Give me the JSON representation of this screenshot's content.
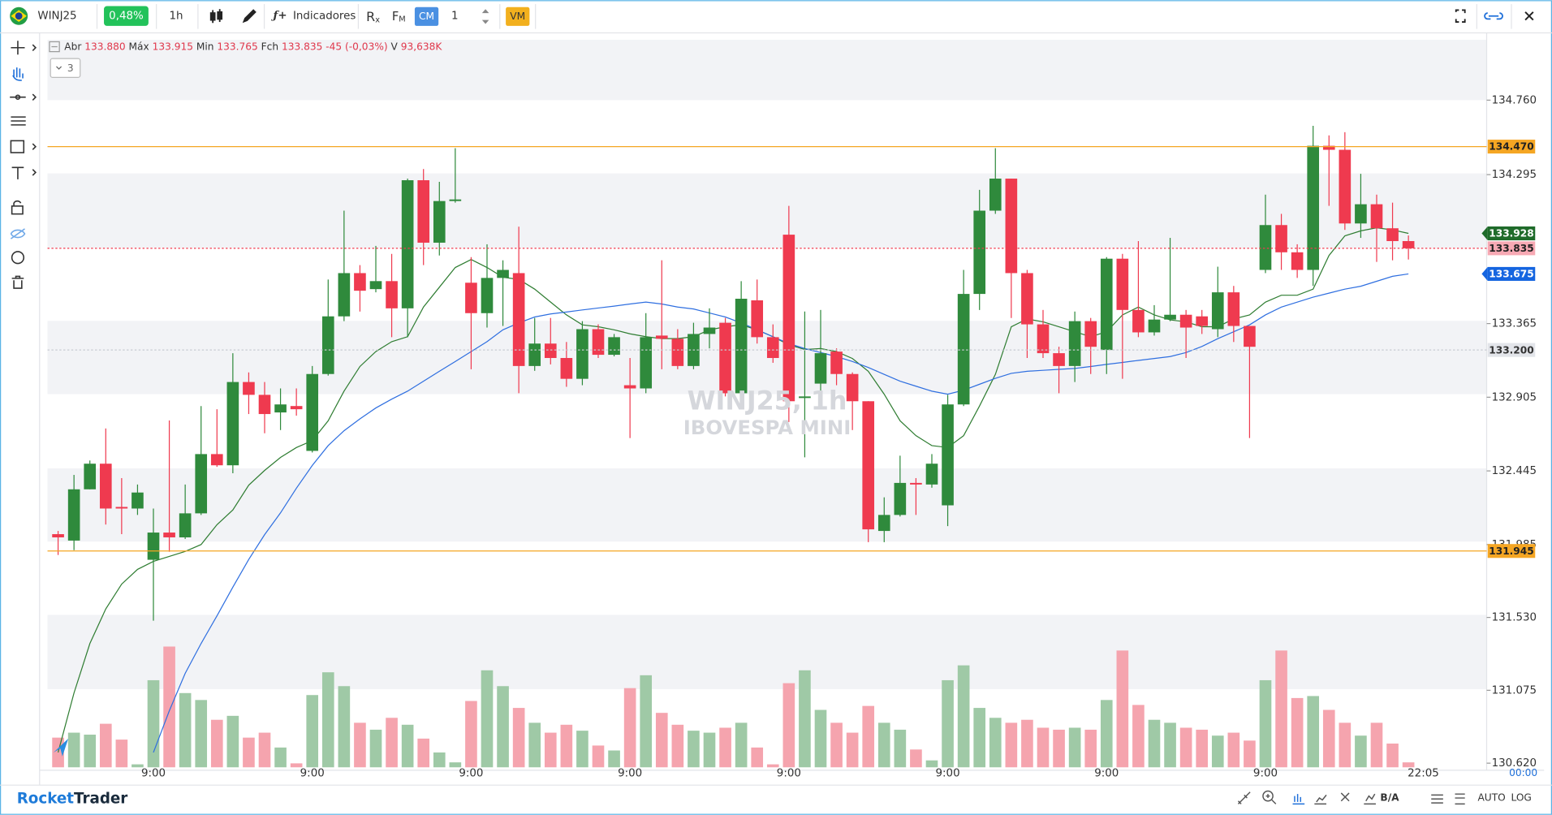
{
  "header": {
    "symbol": "WINJ25",
    "change": "0,48%",
    "interval": "1h",
    "indicators": "Indicadores",
    "r": "R",
    "r_sub": "x",
    "f": "F",
    "f_sub": "M",
    "cm": "CM",
    "qty": "1",
    "vm": "VM"
  },
  "info": {
    "items": [
      [
        "Abr",
        "133.880"
      ],
      [
        "Máx",
        "133.915"
      ],
      [
        "Min",
        "133.765"
      ],
      [
        "Fch",
        "133.835"
      ]
    ],
    "change": "-45 (-0,03%)",
    "vol_label": "V",
    "vol": "93,638K",
    "collapsed": "3"
  },
  "watermark": [
    "WINJ25, 1h",
    "IBOVESPA MINI"
  ],
  "footer": {
    "brand_a": "Rocket",
    "brand_b": "Trader",
    "ba": "B/A",
    "auto": "AUTO",
    "log": "LOG"
  },
  "chart_data": {
    "type": "candlestick",
    "categories": [
      null,
      null,
      null,
      null,
      null,
      null,
      "9:00",
      null,
      null,
      null,
      null,
      null,
      null,
      null,
      null,
      null,
      "9:00",
      null,
      null,
      null,
      null,
      null,
      null,
      null,
      null,
      null,
      "9:00",
      null,
      null,
      null,
      null,
      null,
      null,
      null,
      null,
      null,
      "9:00",
      null,
      null,
      null,
      null,
      null,
      null,
      null,
      null,
      null,
      "9:00",
      null,
      null,
      null,
      null,
      null,
      null,
      null,
      null,
      null,
      "9:00",
      null,
      null,
      null,
      null,
      null,
      null,
      null,
      null,
      null,
      "9:00",
      null,
      null,
      null,
      null,
      null,
      null,
      null,
      null,
      null,
      "9:00",
      null,
      null,
      null,
      null,
      null,
      null,
      null,
      null,
      null
    ],
    "open": [
      132.05,
      132.01,
      132.33,
      132.49,
      132.22,
      132.21,
      131.89,
      132.06,
      132.03,
      132.18,
      132.55,
      132.48,
      133.0,
      132.92,
      132.81,
      132.85,
      132.57,
      133.05,
      133.41,
      133.68,
      133.58,
      133.63,
      133.46,
      134.26,
      133.87,
      134.13,
      133.62,
      133.43,
      133.65,
      133.68,
      133.1,
      133.24,
      133.15,
      133.02,
      133.33,
      133.17,
      132.98,
      132.96,
      133.29,
      133.27,
      133.1,
      133.3,
      133.37,
      132.93,
      133.51,
      133.28,
      133.92,
      132.9,
      132.99,
      133.19,
      133.05,
      132.88,
      132.07,
      132.17,
      132.37,
      132.36,
      132.23,
      132.86,
      133.55,
      134.07,
      134.27,
      133.68,
      133.36,
      133.18,
      133.1,
      133.38,
      133.2,
      133.77,
      133.45,
      133.31,
      133.39,
      133.42,
      133.41,
      133.33,
      133.56,
      133.35,
      133.7,
      133.98,
      133.81,
      133.7,
      134.475,
      134.45,
      133.99,
      134.11,
      133.96,
      133.88
    ],
    "high": [
      132.07,
      132.42,
      132.51,
      132.71,
      132.4,
      132.36,
      132.21,
      132.76,
      132.36,
      132.85,
      132.83,
      133.18,
      133.06,
      133.0,
      132.96,
      132.96,
      133.1,
      133.64,
      134.07,
      133.73,
      133.85,
      133.8,
      134.27,
      134.33,
      134.25,
      134.46,
      133.78,
      133.86,
      133.76,
      133.97,
      133.4,
      133.4,
      133.25,
      133.38,
      133.36,
      133.3,
      133.15,
      133.43,
      133.76,
      133.33,
      133.37,
      133.46,
      133.4,
      133.63,
      133.64,
      133.36,
      134.1,
      133.44,
      133.45,
      133.21,
      133.06,
      132.88,
      132.28,
      132.54,
      132.4,
      132.55,
      132.92,
      133.7,
      134.2,
      134.46,
      134.27,
      133.7,
      133.45,
      133.22,
      133.44,
      133.4,
      133.78,
      133.8,
      133.88,
      133.48,
      133.9,
      133.45,
      133.45,
      133.72,
      133.6,
      133.35,
      134.17,
      134.05,
      133.86,
      134.6,
      134.54,
      134.56,
      134.3,
      134.17,
      134.12,
      133.915
    ],
    "low": [
      131.92,
      131.95,
      132.33,
      132.11,
      132.05,
      132.17,
      131.51,
      131.94,
      132.02,
      132.17,
      132.47,
      132.43,
      132.8,
      132.68,
      132.7,
      132.79,
      132.56,
      133.04,
      133.38,
      133.44,
      133.56,
      133.28,
      133.28,
      133.73,
      133.79,
      134.12,
      133.08,
      133.34,
      133.35,
      132.93,
      133.07,
      133.11,
      132.97,
      132.98,
      133.15,
      133.16,
      132.65,
      132.93,
      133.08,
      133.08,
      133.08,
      133.21,
      132.91,
      132.9,
      133.24,
      133.12,
      132.75,
      132.53,
      132.92,
      132.98,
      132.7,
      132.0,
      132.0,
      132.16,
      132.17,
      132.34,
      132.1,
      132.85,
      133.45,
      134.05,
      133.4,
      133.15,
      133.15,
      132.93,
      133.0,
      133.05,
      133.05,
      133.02,
      133.28,
      133.29,
      133.38,
      133.15,
      133.3,
      133.28,
      133.25,
      132.65,
      133.68,
      133.7,
      133.65,
      133.6,
      134.1,
      133.95,
      133.9,
      133.75,
      133.76,
      133.765
    ],
    "close": [
      132.03,
      132.33,
      132.49,
      132.21,
      132.21,
      132.31,
      132.06,
      132.03,
      132.18,
      132.55,
      132.48,
      133.0,
      132.92,
      132.8,
      132.86,
      132.83,
      133.05,
      133.41,
      133.68,
      133.57,
      133.63,
      133.46,
      134.26,
      133.87,
      134.13,
      134.14,
      133.43,
      133.65,
      133.7,
      133.1,
      133.24,
      133.15,
      133.02,
      133.33,
      133.17,
      133.28,
      132.96,
      133.28,
      133.27,
      133.1,
      133.3,
      133.34,
      132.93,
      133.52,
      133.28,
      133.15,
      132.88,
      132.91,
      133.18,
      133.05,
      132.88,
      132.08,
      132.17,
      132.37,
      132.36,
      132.49,
      132.86,
      133.55,
      134.07,
      134.27,
      133.68,
      133.36,
      133.18,
      133.1,
      133.38,
      133.22,
      133.77,
      133.45,
      133.31,
      133.39,
      133.42,
      133.34,
      133.35,
      133.56,
      133.35,
      133.22,
      133.98,
      133.81,
      133.7,
      134.475,
      134.45,
      133.99,
      134.11,
      133.96,
      133.88,
      133.835
    ],
    "volume": [
      30,
      35,
      33,
      44,
      28,
      3,
      88,
      122,
      75,
      68,
      48,
      52,
      30,
      35,
      20,
      4,
      73,
      96,
      82,
      45,
      38,
      50,
      43,
      29,
      15,
      5,
      67,
      98,
      82,
      60,
      45,
      35,
      43,
      37,
      22,
      17,
      80,
      93,
      55,
      43,
      37,
      35,
      40,
      45,
      20,
      3,
      85,
      98,
      58,
      45,
      35,
      62,
      45,
      38,
      18,
      7,
      88,
      103,
      60,
      50,
      45,
      48,
      40,
      38,
      40,
      38,
      68,
      118,
      63,
      48,
      45,
      40,
      38,
      32,
      35,
      27,
      88,
      118,
      70,
      72,
      58,
      45,
      32,
      45,
      24,
      5
    ],
    "up_color": "#2f8a3c",
    "down_color": "#ef3a4f",
    "volume_up_color": "#9fc9a6",
    "volume_down_color": "#f5a4ae",
    "ma_lines": [
      {
        "color": "#2f7d32",
        "values": [
          130.687,
          131.058,
          131.367,
          131.583,
          131.738,
          131.83,
          131.88,
          131.911,
          131.942,
          131.985,
          132.109,
          132.201,
          132.356,
          132.448,
          132.529,
          132.591,
          132.634,
          132.758,
          132.943,
          133.097,
          133.19,
          133.252,
          133.283,
          133.468,
          133.592,
          133.715,
          133.765,
          133.715,
          133.654,
          133.641,
          133.58,
          133.499,
          133.419,
          133.357,
          133.345,
          133.326,
          133.301,
          133.283,
          133.271,
          133.271,
          133.283,
          133.326,
          133.345,
          133.357,
          133.326,
          133.283,
          133.233,
          133.203,
          133.209,
          133.19,
          133.147,
          133.067,
          132.924,
          132.758,
          132.665,
          132.603,
          132.591,
          132.665,
          132.85,
          133.048,
          133.345,
          133.394,
          133.376,
          133.345,
          133.314,
          133.283,
          133.314,
          133.419,
          133.468,
          133.419,
          133.388,
          133.376,
          133.345,
          133.345,
          133.394,
          133.419,
          133.499,
          133.542,
          133.542,
          133.58,
          133.79,
          133.913,
          133.944,
          133.963,
          133.95,
          133.928
        ]
      },
      {
        "color": "#2f6fe0",
        "values": [
          null,
          null,
          null,
          null,
          null,
          null,
          130.687,
          130.947,
          131.181,
          131.367,
          131.54,
          131.719,
          131.892,
          132.047,
          132.183,
          132.337,
          132.479,
          132.603,
          132.696,
          132.77,
          132.838,
          132.893,
          132.943,
          133.005,
          133.067,
          133.128,
          133.19,
          133.252,
          133.326,
          133.369,
          133.406,
          133.425,
          133.437,
          133.45,
          133.462,
          133.474,
          133.487,
          133.499,
          133.487,
          133.468,
          133.456,
          133.431,
          133.406,
          133.369,
          133.326,
          133.283,
          133.24,
          133.209,
          133.184,
          133.159,
          133.128,
          133.091,
          133.048,
          133.005,
          132.974,
          132.943,
          132.924,
          132.949,
          132.986,
          133.023,
          133.054,
          133.067,
          133.073,
          133.079,
          133.085,
          133.097,
          133.11,
          133.122,
          133.135,
          133.147,
          133.159,
          133.184,
          133.222,
          133.271,
          133.314,
          133.357,
          133.419,
          133.468,
          133.499,
          133.53,
          133.555,
          133.58,
          133.598,
          133.629,
          133.66,
          133.675
        ]
      }
    ],
    "price_lines": [
      {
        "value": 134.47,
        "label": "134.470",
        "color": "#f5a623",
        "text_color": "#222",
        "line": "solid"
      },
      {
        "value": 133.928,
        "label": "133.928",
        "color": "#1f6b2a",
        "text_color": "#fff",
        "line": "none"
      },
      {
        "value": 133.835,
        "label": "133.835",
        "color": "#f7a9b4",
        "text_color": "#222",
        "line": "dotted",
        "line_color": "#ef3a4f"
      },
      {
        "value": 133.675,
        "label": "133.675",
        "color": "#1565e0",
        "text_color": "#fff",
        "line": "none"
      },
      {
        "value": 133.2,
        "label": "133.200",
        "color": "#e3e5ea",
        "text_color": "#333",
        "line": "dotted",
        "line_color": "#c8cbd2"
      },
      {
        "value": 131.945,
        "label": "131.945",
        "color": "#f5a623",
        "text_color": "#222",
        "line": "solid"
      }
    ],
    "ylim": [
      130.588,
      135.137
    ],
    "yticks": [
      {
        "value": 134.76,
        "label": "134.760"
      },
      134.295,
      133.365,
      132.905,
      132.445,
      131.985,
      {
        "value": 131.53,
        "label": "131.530"
      },
      131.075,
      {
        "value": 130.62,
        "label": "130.620"
      }
    ],
    "countdown": "22:05",
    "clock": "00:00"
  }
}
